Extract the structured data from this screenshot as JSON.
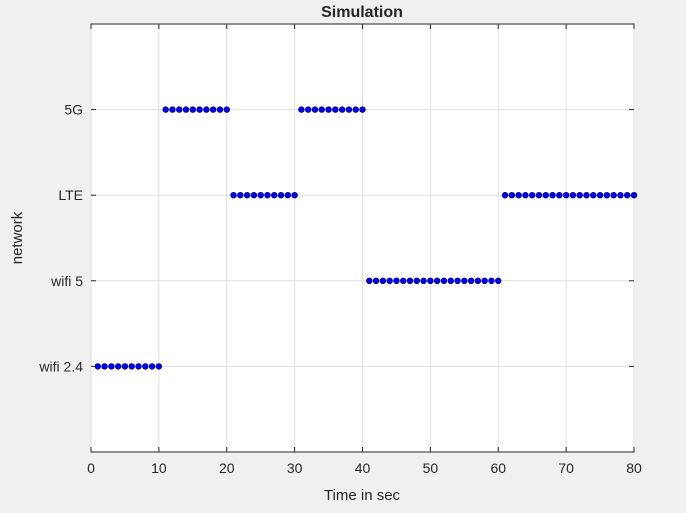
{
  "chart_data": {
    "type": "scatter",
    "title": "Simulation",
    "xlabel": "Time in sec",
    "ylabel": "network",
    "xlim": [
      0,
      80
    ],
    "ylim": [
      0,
      5
    ],
    "xticks": [
      0,
      10,
      20,
      30,
      40,
      50,
      60,
      70,
      80
    ],
    "yticks": [
      {
        "value": 1,
        "label": "wifi 2.4"
      },
      {
        "value": 2,
        "label": "wifi 5"
      },
      {
        "value": 3,
        "label": "LTE"
      },
      {
        "value": 4,
        "label": "5G"
      }
    ],
    "grid": true,
    "marker_color": "#0000ff",
    "marker_edge_color": "#00007a",
    "segments": [
      {
        "level": 1,
        "x_start": 1,
        "x_end": 10
      },
      {
        "level": 4,
        "x_start": 11,
        "x_end": 20
      },
      {
        "level": 3,
        "x_start": 21,
        "x_end": 30
      },
      {
        "level": 4,
        "x_start": 31,
        "x_end": 40
      },
      {
        "level": 2,
        "x_start": 41,
        "x_end": 60
      },
      {
        "level": 3,
        "x_start": 61,
        "x_end": 80
      }
    ]
  }
}
